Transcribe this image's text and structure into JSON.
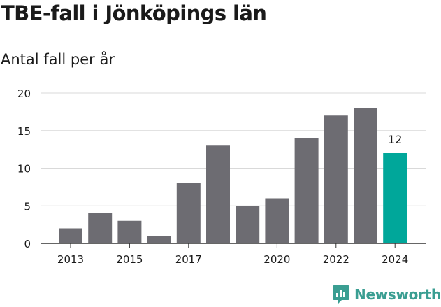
{
  "chart_data": {
    "type": "bar",
    "title": "TBE-fall i Jönköpings län",
    "subtitle": "Antal fall per år",
    "categories": [
      "2013",
      "2014",
      "2015",
      "2016",
      "2017",
      "2018",
      "2019",
      "2020",
      "2021",
      "2022",
      "2023",
      "2024"
    ],
    "values": [
      2,
      4,
      3,
      1,
      8,
      13,
      5,
      6,
      14,
      17,
      18,
      12
    ],
    "x_tick_labels": [
      "2013",
      "",
      "2015",
      "",
      "2017",
      "",
      "",
      "2020",
      "",
      "2022",
      "",
      "2024"
    ],
    "highlight_index": 11,
    "highlight_label": "12",
    "ylim": [
      0,
      20
    ],
    "yticks": [
      0,
      5,
      10,
      15,
      20
    ],
    "grid": true,
    "xlabel": "",
    "ylabel": "",
    "colors": {
      "bar": "#6d6c72",
      "highlight": "#00a79a",
      "grid": "#d9d9d9",
      "axis": "#333333",
      "text": "#1a1a1a"
    }
  },
  "brand": {
    "name": "Newsworthy",
    "icon": "newsworthy-logo-icon",
    "color": "#3a9e92"
  }
}
